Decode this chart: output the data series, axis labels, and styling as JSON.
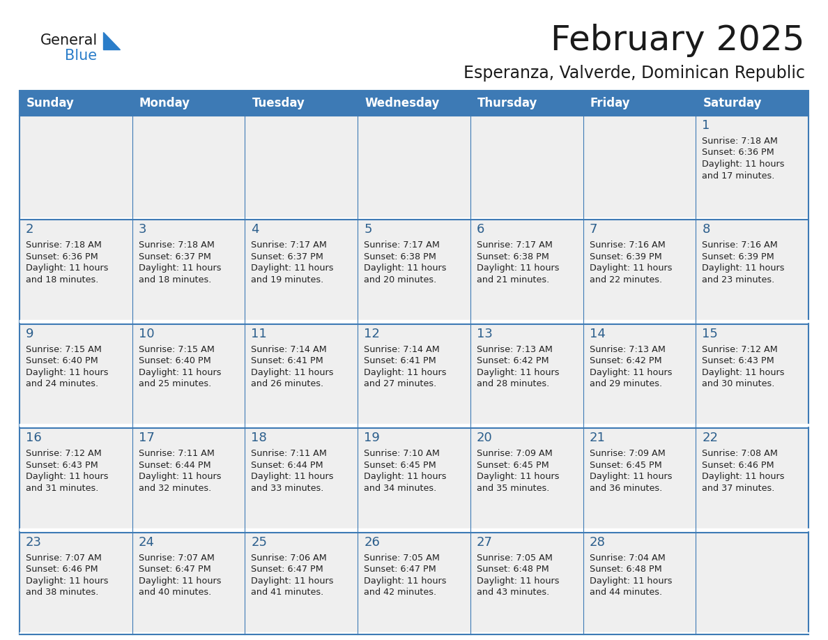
{
  "title": "February 2025",
  "subtitle": "Esperanza, Valverde, Dominican Republic",
  "header_bg": "#3d7ab5",
  "header_text": "#ffffff",
  "cell_bg": "#efefef",
  "cell_bg_white": "#ffffff",
  "cell_border": "#3d7ab5",
  "cell_divider": "#cccccc",
  "day_headers": [
    "Sunday",
    "Monday",
    "Tuesday",
    "Wednesday",
    "Thursday",
    "Friday",
    "Saturday"
  ],
  "title_color": "#1a1a1a",
  "subtitle_color": "#1a1a1a",
  "day_num_color": "#2b5e8c",
  "info_color": "#222222",
  "logo_general_color": "#1a1a1a",
  "logo_blue_color": "#2a7dc9",
  "weeks": [
    [
      {
        "day": 0,
        "info": ""
      },
      {
        "day": 0,
        "info": ""
      },
      {
        "day": 0,
        "info": ""
      },
      {
        "day": 0,
        "info": ""
      },
      {
        "day": 0,
        "info": ""
      },
      {
        "day": 0,
        "info": ""
      },
      {
        "day": 1,
        "info": "Sunrise: 7:18 AM\nSunset: 6:36 PM\nDaylight: 11 hours\nand 17 minutes."
      }
    ],
    [
      {
        "day": 2,
        "info": "Sunrise: 7:18 AM\nSunset: 6:36 PM\nDaylight: 11 hours\nand 18 minutes."
      },
      {
        "day": 3,
        "info": "Sunrise: 7:18 AM\nSunset: 6:37 PM\nDaylight: 11 hours\nand 18 minutes."
      },
      {
        "day": 4,
        "info": "Sunrise: 7:17 AM\nSunset: 6:37 PM\nDaylight: 11 hours\nand 19 minutes."
      },
      {
        "day": 5,
        "info": "Sunrise: 7:17 AM\nSunset: 6:38 PM\nDaylight: 11 hours\nand 20 minutes."
      },
      {
        "day": 6,
        "info": "Sunrise: 7:17 AM\nSunset: 6:38 PM\nDaylight: 11 hours\nand 21 minutes."
      },
      {
        "day": 7,
        "info": "Sunrise: 7:16 AM\nSunset: 6:39 PM\nDaylight: 11 hours\nand 22 minutes."
      },
      {
        "day": 8,
        "info": "Sunrise: 7:16 AM\nSunset: 6:39 PM\nDaylight: 11 hours\nand 23 minutes."
      }
    ],
    [
      {
        "day": 9,
        "info": "Sunrise: 7:15 AM\nSunset: 6:40 PM\nDaylight: 11 hours\nand 24 minutes."
      },
      {
        "day": 10,
        "info": "Sunrise: 7:15 AM\nSunset: 6:40 PM\nDaylight: 11 hours\nand 25 minutes."
      },
      {
        "day": 11,
        "info": "Sunrise: 7:14 AM\nSunset: 6:41 PM\nDaylight: 11 hours\nand 26 minutes."
      },
      {
        "day": 12,
        "info": "Sunrise: 7:14 AM\nSunset: 6:41 PM\nDaylight: 11 hours\nand 27 minutes."
      },
      {
        "day": 13,
        "info": "Sunrise: 7:13 AM\nSunset: 6:42 PM\nDaylight: 11 hours\nand 28 minutes."
      },
      {
        "day": 14,
        "info": "Sunrise: 7:13 AM\nSunset: 6:42 PM\nDaylight: 11 hours\nand 29 minutes."
      },
      {
        "day": 15,
        "info": "Sunrise: 7:12 AM\nSunset: 6:43 PM\nDaylight: 11 hours\nand 30 minutes."
      }
    ],
    [
      {
        "day": 16,
        "info": "Sunrise: 7:12 AM\nSunset: 6:43 PM\nDaylight: 11 hours\nand 31 minutes."
      },
      {
        "day": 17,
        "info": "Sunrise: 7:11 AM\nSunset: 6:44 PM\nDaylight: 11 hours\nand 32 minutes."
      },
      {
        "day": 18,
        "info": "Sunrise: 7:11 AM\nSunset: 6:44 PM\nDaylight: 11 hours\nand 33 minutes."
      },
      {
        "day": 19,
        "info": "Sunrise: 7:10 AM\nSunset: 6:45 PM\nDaylight: 11 hours\nand 34 minutes."
      },
      {
        "day": 20,
        "info": "Sunrise: 7:09 AM\nSunset: 6:45 PM\nDaylight: 11 hours\nand 35 minutes."
      },
      {
        "day": 21,
        "info": "Sunrise: 7:09 AM\nSunset: 6:45 PM\nDaylight: 11 hours\nand 36 minutes."
      },
      {
        "day": 22,
        "info": "Sunrise: 7:08 AM\nSunset: 6:46 PM\nDaylight: 11 hours\nand 37 minutes."
      }
    ],
    [
      {
        "day": 23,
        "info": "Sunrise: 7:07 AM\nSunset: 6:46 PM\nDaylight: 11 hours\nand 38 minutes."
      },
      {
        "day": 24,
        "info": "Sunrise: 7:07 AM\nSunset: 6:47 PM\nDaylight: 11 hours\nand 40 minutes."
      },
      {
        "day": 25,
        "info": "Sunrise: 7:06 AM\nSunset: 6:47 PM\nDaylight: 11 hours\nand 41 minutes."
      },
      {
        "day": 26,
        "info": "Sunrise: 7:05 AM\nSunset: 6:47 PM\nDaylight: 11 hours\nand 42 minutes."
      },
      {
        "day": 27,
        "info": "Sunrise: 7:05 AM\nSunset: 6:48 PM\nDaylight: 11 hours\nand 43 minutes."
      },
      {
        "day": 28,
        "info": "Sunrise: 7:04 AM\nSunset: 6:48 PM\nDaylight: 11 hours\nand 44 minutes."
      },
      {
        "day": 0,
        "info": ""
      }
    ]
  ]
}
